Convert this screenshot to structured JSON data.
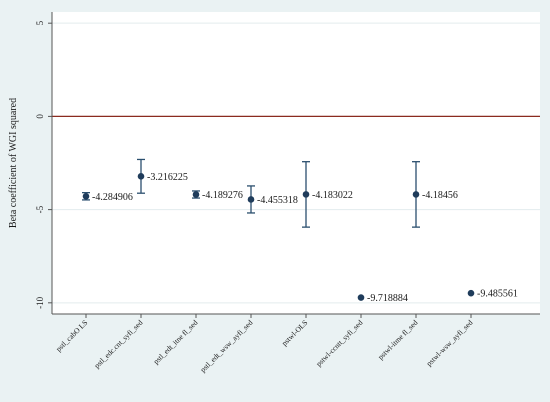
{
  "chart_data": {
    "type": "scatter",
    "ylabel": "Beta coefficient of WGI squared",
    "xlabel": "",
    "title": "",
    "ylim": [
      -10.6,
      5.6
    ],
    "yticks": [
      5,
      0,
      -5,
      -10
    ],
    "yticklabels": [
      "5",
      "0",
      "-5",
      "-10"
    ],
    "reference_line": {
      "y": 0,
      "color": "#8b2b1f"
    },
    "grid": true,
    "categories": [
      "pstl_cabO LS",
      "pstl_edc.cnt_syfi_sed",
      "pstl_edt_itne fl_sed",
      "pstl_edt_wsw_ayfi_sed",
      "pstwl-OLS",
      "pstwl-ccntt_syfi_sed",
      "pstwl-itme fl_sed",
      "pstwl-wsw_ayfi_sed"
    ],
    "points": [
      {
        "category": "pstl_cabO LS",
        "estimate": -4.284906,
        "ci_low": -4.48,
        "ci_high": -4.09,
        "label": "-4.284906"
      },
      {
        "category": "pstl_edc.cnt_syfi_sed",
        "estimate": -3.216225,
        "ci_low": -4.12,
        "ci_high": -2.31,
        "label": "-3.216225"
      },
      {
        "category": "pstl_edt_itne fl_sed",
        "estimate": -4.189276,
        "ci_low": -4.38,
        "ci_high": -4.0,
        "label": "-4.189276"
      },
      {
        "category": "pstl_edt_wsw_ayfi_sed",
        "estimate": -4.455318,
        "ci_low": -5.18,
        "ci_high": -3.73,
        "label": "-4.455318"
      },
      {
        "category": "pstwl-OLS",
        "estimate": -4.183022,
        "ci_low": -5.94,
        "ci_high": -2.43,
        "label": "-4.183022"
      },
      {
        "category": "pstwl-ccntt_syfi_sed",
        "estimate": -9.718884,
        "ci_low": -9.718884,
        "ci_high": -9.718884,
        "label": "-9.718884"
      },
      {
        "category": "pstwl-itme fl_sed",
        "estimate": -4.18456,
        "ci_low": -5.94,
        "ci_high": -2.43,
        "label": "-4.18456"
      },
      {
        "category": "pstwl-wsw_ayfi_sed",
        "estimate": -9.485561,
        "ci_low": -9.485561,
        "ci_high": -9.485561,
        "label": "-9.485561"
      }
    ],
    "colors": {
      "marker": "#1f3c5b",
      "errorbar": "#2b4f6e",
      "plot_background": "#ffffff",
      "outer_background": "#eaf2f3",
      "gridline": "#e3ecee"
    }
  }
}
